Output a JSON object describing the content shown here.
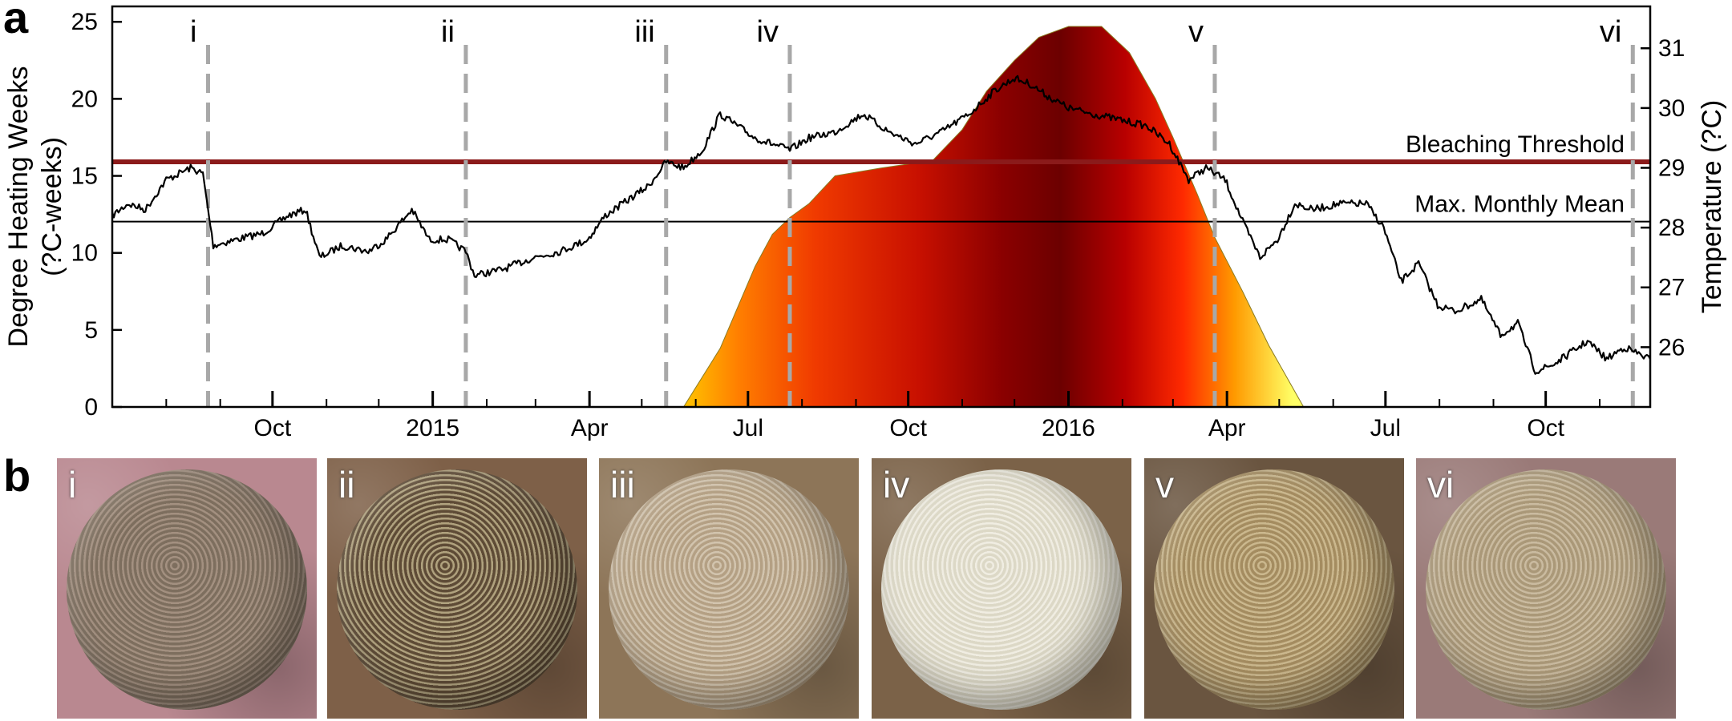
{
  "panel_a_label": "a",
  "panel_b_label": "b",
  "chart_data": {
    "type": "line",
    "x_unit": "date",
    "xlim": [
      "2014-07-01",
      "2016-11-30"
    ],
    "left_axis": {
      "label": "Degree Heating Weeks\n(?C-weeks)",
      "ylim": [
        0,
        26
      ],
      "ticks": [
        0,
        5,
        10,
        15,
        20,
        25
      ]
    },
    "right_axis": {
      "label": "Temperature (?C)",
      "ylim": [
        25,
        31.7
      ],
      "ticks": [
        26,
        27,
        28,
        29,
        30,
        31
      ]
    },
    "x_tick_labels": [
      {
        "date": "2014-10-01",
        "label": "Oct"
      },
      {
        "date": "2015-01-01",
        "label": "2015"
      },
      {
        "date": "2015-04-01",
        "label": "Apr"
      },
      {
        "date": "2015-07-01",
        "label": "Jul"
      },
      {
        "date": "2015-10-01",
        "label": "Oct"
      },
      {
        "date": "2016-01-01",
        "label": "2016"
      },
      {
        "date": "2016-04-01",
        "label": "Apr"
      },
      {
        "date": "2016-07-01",
        "label": "Jul"
      },
      {
        "date": "2016-10-01",
        "label": "Oct"
      }
    ],
    "reference_lines": [
      {
        "name": "Bleaching Threshold",
        "axis": "right",
        "value": 29.1,
        "color": "#8b1a1a"
      },
      {
        "name": "Max. Monthly Mean",
        "axis": "right",
        "value": 28.1,
        "color": "#000000"
      }
    ],
    "sampling_events": [
      {
        "label": "i",
        "date": "2014-08-25"
      },
      {
        "label": "ii",
        "date": "2015-01-20"
      },
      {
        "label": "iii",
        "date": "2015-05-15"
      },
      {
        "label": "iv",
        "date": "2015-07-25"
      },
      {
        "label": "v",
        "date": "2016-03-25"
      },
      {
        "label": "vi",
        "date": "2016-11-20"
      }
    ],
    "series": [
      {
        "name": "Degree Heating Weeks",
        "axis": "left",
        "style": "heat-colored area",
        "points": [
          [
            "2015-05-25",
            0
          ],
          [
            "2015-06-15",
            3.8
          ],
          [
            "2015-07-05",
            9.1
          ],
          [
            "2015-07-15",
            11.2
          ],
          [
            "2015-07-25",
            12.3
          ],
          [
            "2015-08-05",
            13.2
          ],
          [
            "2015-08-20",
            15.0
          ],
          [
            "2015-09-15",
            15.5
          ],
          [
            "2015-10-15",
            16.0
          ],
          [
            "2015-11-01",
            18.0
          ],
          [
            "2015-11-15",
            20.5
          ],
          [
            "2015-12-01",
            22.5
          ],
          [
            "2015-12-15",
            24.0
          ],
          [
            "2016-01-01",
            24.7
          ],
          [
            "2016-01-20",
            24.7
          ],
          [
            "2016-02-05",
            23.0
          ],
          [
            "2016-02-20",
            20.0
          ],
          [
            "2016-03-01",
            17.5
          ],
          [
            "2016-03-15",
            13.8
          ],
          [
            "2016-03-25",
            11.0
          ],
          [
            "2016-04-10",
            7.5
          ],
          [
            "2016-04-25",
            4.0
          ],
          [
            "2016-05-15",
            0
          ]
        ]
      },
      {
        "name": "Temperature",
        "axis": "right",
        "style": "line",
        "points": [
          [
            "2014-07-01",
            28.2
          ],
          [
            "2014-07-10",
            28.4
          ],
          [
            "2014-07-20",
            28.3
          ],
          [
            "2014-08-01",
            28.8
          ],
          [
            "2014-08-15",
            29.0
          ],
          [
            "2014-08-22",
            28.9
          ],
          [
            "2014-08-28",
            27.7
          ],
          [
            "2014-09-10",
            27.8
          ],
          [
            "2014-09-25",
            27.9
          ],
          [
            "2014-10-10",
            28.2
          ],
          [
            "2014-10-20",
            28.3
          ],
          [
            "2014-10-28",
            27.5
          ],
          [
            "2014-11-10",
            27.7
          ],
          [
            "2014-11-25",
            27.6
          ],
          [
            "2014-12-05",
            27.8
          ],
          [
            "2014-12-20",
            28.3
          ],
          [
            "2014-12-30",
            27.8
          ],
          [
            "2015-01-10",
            27.8
          ],
          [
            "2015-01-20",
            27.6
          ],
          [
            "2015-01-25",
            27.2
          ],
          [
            "2015-02-10",
            27.3
          ],
          [
            "2015-02-28",
            27.5
          ],
          [
            "2015-03-15",
            27.6
          ],
          [
            "2015-03-31",
            27.8
          ],
          [
            "2015-04-10",
            28.2
          ],
          [
            "2015-04-25",
            28.5
          ],
          [
            "2015-05-05",
            28.7
          ],
          [
            "2015-05-15",
            29.1
          ],
          [
            "2015-05-25",
            29.0
          ],
          [
            "2015-06-05",
            29.3
          ],
          [
            "2015-06-15",
            29.9
          ],
          [
            "2015-06-25",
            29.7
          ],
          [
            "2015-07-05",
            29.5
          ],
          [
            "2015-07-15",
            29.4
          ],
          [
            "2015-07-25",
            29.3
          ],
          [
            "2015-08-05",
            29.5
          ],
          [
            "2015-08-20",
            29.6
          ],
          [
            "2015-09-05",
            29.9
          ],
          [
            "2015-09-20",
            29.6
          ],
          [
            "2015-10-05",
            29.4
          ],
          [
            "2015-10-20",
            29.6
          ],
          [
            "2015-11-05",
            29.9
          ],
          [
            "2015-11-20",
            30.3
          ],
          [
            "2015-12-01",
            30.5
          ],
          [
            "2015-12-10",
            30.4
          ],
          [
            "2015-12-20",
            30.2
          ],
          [
            "2016-01-01",
            30.0
          ],
          [
            "2016-01-15",
            29.9
          ],
          [
            "2016-01-31",
            29.8
          ],
          [
            "2016-02-15",
            29.7
          ],
          [
            "2016-02-28",
            29.4
          ],
          [
            "2016-03-10",
            28.8
          ],
          [
            "2016-03-20",
            29.0
          ],
          [
            "2016-03-31",
            28.8
          ],
          [
            "2016-04-10",
            28.1
          ],
          [
            "2016-04-20",
            27.5
          ],
          [
            "2016-04-30",
            27.8
          ],
          [
            "2016-05-10",
            28.4
          ],
          [
            "2016-05-20",
            28.3
          ],
          [
            "2016-06-05",
            28.4
          ],
          [
            "2016-06-20",
            28.4
          ],
          [
            "2016-06-30",
            28.0
          ],
          [
            "2016-07-10",
            27.1
          ],
          [
            "2016-07-20",
            27.4
          ],
          [
            "2016-07-31",
            26.7
          ],
          [
            "2016-08-10",
            26.6
          ],
          [
            "2016-08-25",
            26.8
          ],
          [
            "2016-09-05",
            26.2
          ],
          [
            "2016-09-15",
            26.4
          ],
          [
            "2016-09-25",
            25.6
          ],
          [
            "2016-10-05",
            25.7
          ],
          [
            "2016-10-15",
            25.9
          ],
          [
            "2016-10-25",
            26.1
          ],
          [
            "2016-11-05",
            25.8
          ],
          [
            "2016-11-15",
            26.0
          ],
          [
            "2016-11-30",
            25.8
          ]
        ]
      }
    ]
  },
  "photos": [
    {
      "label": "i",
      "rock": "#b98890",
      "coral": "#7d6e5e",
      "pale": "#a39080"
    },
    {
      "label": "ii",
      "rock": "#7e6048",
      "coral": "#5e4b36",
      "pale": "#b0a27e"
    },
    {
      "label": "iii",
      "rock": "#8d7558",
      "coral": "#b4a084",
      "pale": "#d2c4ae"
    },
    {
      "label": "iv",
      "rock": "#7b6248",
      "coral": "#dcd8c6",
      "pale": "#f0ede2"
    },
    {
      "label": "v",
      "rock": "#6a5540",
      "coral": "#a48c60",
      "pale": "#cbb88e"
    },
    {
      "label": "vi",
      "rock": "#9a7a78",
      "coral": "#aa9878",
      "pale": "#cabba0"
    }
  ]
}
